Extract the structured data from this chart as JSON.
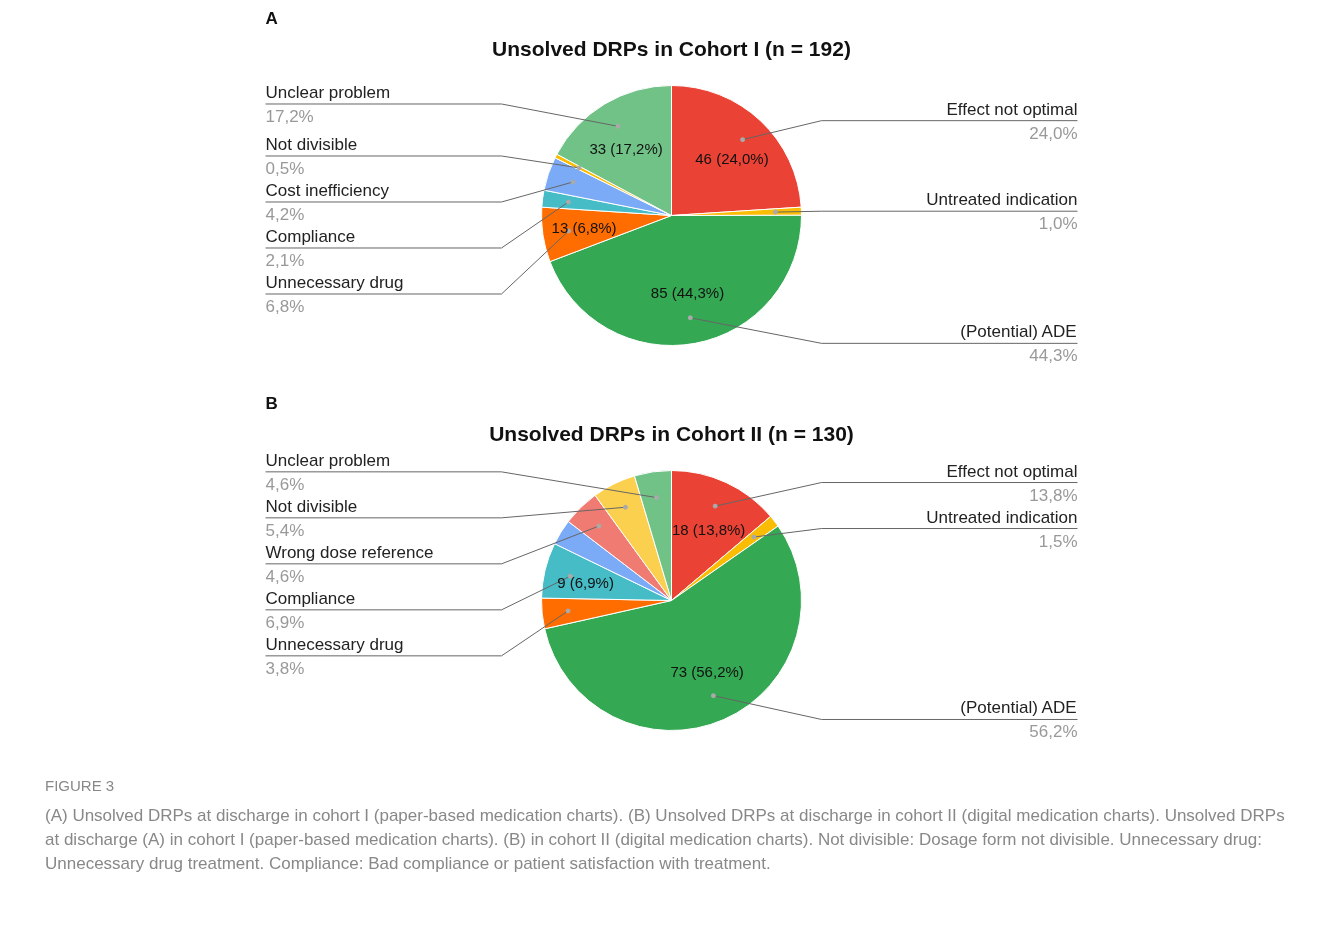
{
  "chart_data": [
    {
      "type": "pie",
      "title": "Unsolved DRPs in Cohort I (n = 192)",
      "categories": [
        "Effect not optimal",
        "Untreated indication",
        "(Potential) ADE",
        "Unnecessary drug",
        "Compliance",
        "Cost inefficiency",
        "Not divisible",
        "Unclear problem"
      ],
      "values": [
        24.0,
        1.0,
        44.3,
        6.8,
        2.1,
        4.2,
        0.5,
        17.2
      ],
      "colors": [
        "#ea4335",
        "#fbbc04",
        "#34a853",
        "#ff6d01",
        "#46bdc6",
        "#7baaf7",
        "#fbbc04",
        "#71c287"
      ],
      "value_labels": [
        "24,0%",
        "1,0%",
        "44,3%",
        "6,8%",
        "2,1%",
        "4,2%",
        "0,5%",
        "17,2%"
      ],
      "annotations": [
        "A",
        {
          "text": "46 (24,0%)",
          "x": "Effect not optimal"
        },
        {
          "text": "85 (44,3%)",
          "x": "(Potential) ADE"
        },
        {
          "text": "13 (6,8%)",
          "x": "Unnecessary drug"
        },
        {
          "text": "33 (17,2%)",
          "x": "Unclear problem"
        }
      ]
    },
    {
      "type": "pie",
      "title": "Unsolved DRPs in Cohort II (n = 130)",
      "categories": [
        "Effect not optimal",
        "Untreated indication",
        "(Potential) ADE",
        "Unnecessary drug",
        "Compliance",
        null,
        "Wrong dose reference",
        "Not divisible",
        "Unclear problem"
      ],
      "values": [
        13.8,
        1.5,
        56.2,
        3.8,
        6.9,
        3.2,
        4.6,
        5.4,
        4.6
      ],
      "colors": [
        "#ea4335",
        "#fbbc04",
        "#34a853",
        "#ff6d01",
        "#46bdc6",
        "#7baaf7",
        "#f07b72",
        "#fcd04f",
        "#71c287"
      ],
      "value_labels": [
        "13,8%",
        "1,5%",
        "56,2%",
        "3,8%",
        "6,9%",
        null,
        "4,6%",
        "5,4%",
        "4,6%"
      ],
      "annotations": [
        "B",
        {
          "text": "18 (13,8%)",
          "x": "Effect not optimal"
        },
        {
          "text": "73 (56,2%)",
          "x": "(Potential) ADE"
        },
        {
          "text": "9 (6,9%)",
          "x": "Compliance"
        },
        "FIGURE 3",
        "(A) Unsolved DRPs at discharge in cohort I (paper-based medication charts). (B) Unsolved DRPs at discharge in cohort II (digital medication charts). Unsolved DRPs at discharge (A) in cohort I (paper-based medication charts). (B) in cohort II (digital medication charts). Not divisible: Dosage form not divisible. Unnecessary drug: Unnecessary drug treatment. Compliance: Bad compliance or patient satisfaction with treatment."
      ]
    }
  ]
}
